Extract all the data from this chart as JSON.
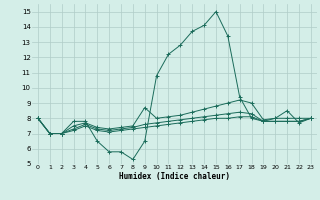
{
  "title": "",
  "xlabel": "Humidex (Indice chaleur)",
  "xlim": [
    -0.5,
    23.5
  ],
  "ylim": [
    5,
    15.5
  ],
  "yticks": [
    5,
    6,
    7,
    8,
    9,
    10,
    11,
    12,
    13,
    14,
    15
  ],
  "xticks": [
    0,
    1,
    2,
    3,
    4,
    5,
    6,
    7,
    8,
    9,
    10,
    11,
    12,
    13,
    14,
    15,
    16,
    17,
    18,
    19,
    20,
    21,
    22,
    23
  ],
  "bg_color": "#d4eee8",
  "grid_color": "#b0ccc8",
  "line_color": "#1a6b5a",
  "series": [
    [
      8.0,
      7.0,
      7.0,
      7.8,
      7.8,
      6.5,
      5.8,
      5.8,
      5.3,
      6.5,
      10.8,
      12.2,
      12.8,
      13.7,
      14.1,
      15.0,
      13.4,
      9.4,
      8.0,
      7.8,
      8.0,
      8.5,
      7.7,
      8.0
    ],
    [
      8.0,
      7.0,
      7.0,
      7.5,
      7.7,
      7.4,
      7.3,
      7.4,
      7.5,
      8.7,
      8.0,
      8.1,
      8.2,
      8.4,
      8.6,
      8.8,
      9.0,
      9.2,
      9.0,
      7.9,
      8.0,
      8.0,
      8.0,
      8.0
    ],
    [
      8.0,
      7.0,
      7.0,
      7.3,
      7.6,
      7.3,
      7.2,
      7.3,
      7.4,
      7.6,
      7.7,
      7.8,
      7.9,
      8.0,
      8.1,
      8.2,
      8.3,
      8.4,
      8.3,
      7.8,
      7.8,
      7.8,
      7.8,
      8.0
    ],
    [
      8.0,
      7.0,
      7.0,
      7.2,
      7.5,
      7.2,
      7.1,
      7.2,
      7.3,
      7.4,
      7.5,
      7.6,
      7.7,
      7.8,
      7.9,
      8.0,
      8.0,
      8.1,
      8.1,
      7.8,
      7.8,
      7.8,
      7.8,
      8.0
    ]
  ]
}
